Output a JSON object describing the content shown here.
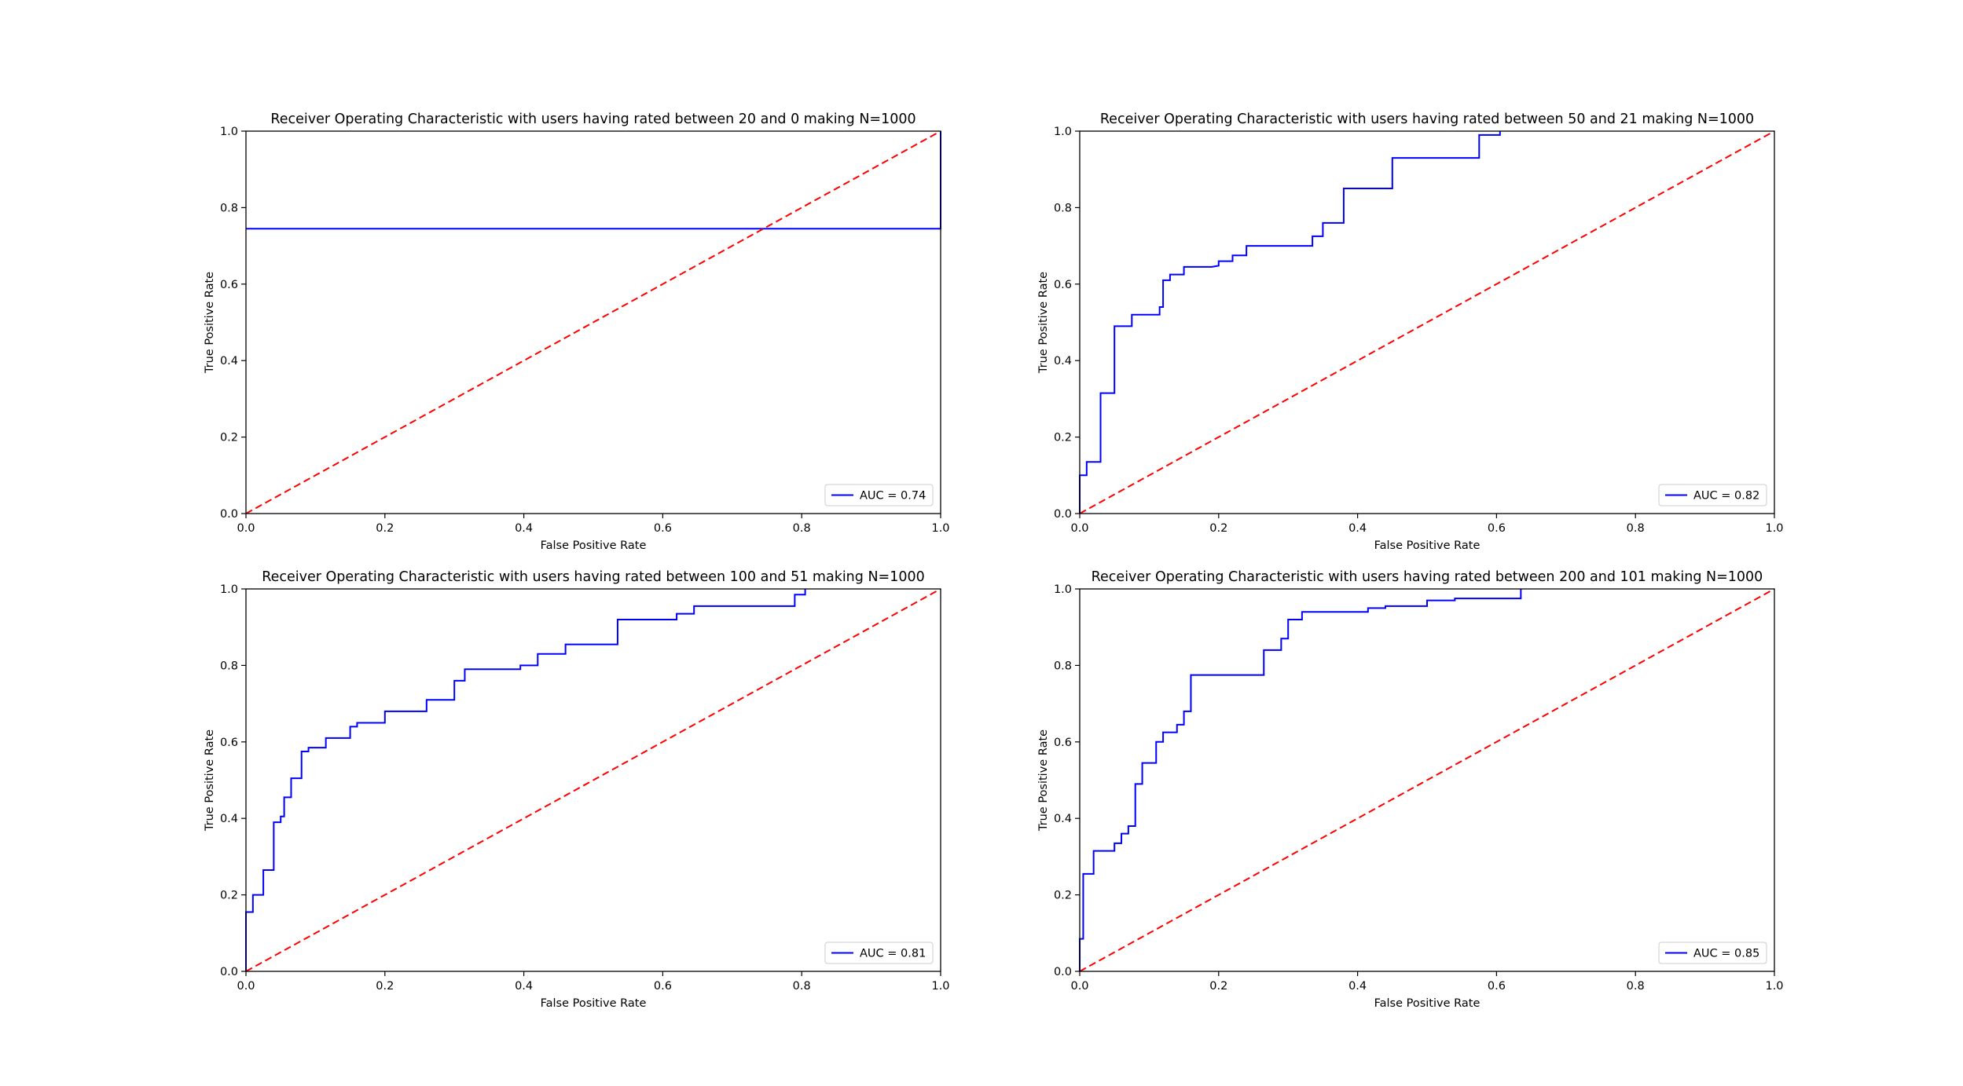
{
  "colors": {
    "roc": "#0000ff",
    "diagonal": "#ff0000",
    "axes": "#000000",
    "background": "#ffffff"
  },
  "chart_data": [
    {
      "type": "line",
      "title": "Receiver Operating Characteristic with users having rated between 20 and 0 making N=1000",
      "xlabel": "False Positive Rate",
      "ylabel": "True Positive Rate",
      "xlim": [
        0,
        1
      ],
      "ylim": [
        0,
        1
      ],
      "xticks": [
        "0.0",
        "0.2",
        "0.4",
        "0.6",
        "0.8",
        "1.0"
      ],
      "yticks": [
        "0.0",
        "0.2",
        "0.4",
        "0.6",
        "0.8",
        "1.0"
      ],
      "grid": false,
      "legend_position": "lower-right",
      "series": [
        {
          "name": "AUC = 0.74",
          "style": "solid",
          "color": "#0000ff",
          "x": [
            0.0,
            1.0,
            1.0
          ],
          "y": [
            0.745,
            0.745,
            1.0
          ]
        },
        {
          "style": "dashed",
          "color": "#ff0000",
          "x": [
            0,
            1
          ],
          "y": [
            0,
            1
          ]
        }
      ]
    },
    {
      "type": "line",
      "title": "Receiver Operating Characteristic with users having rated between 50 and 21 making N=1000",
      "xlabel": "False Positive Rate",
      "ylabel": "True Positive Rate",
      "xlim": [
        0,
        1
      ],
      "ylim": [
        0,
        1
      ],
      "xticks": [
        "0.0",
        "0.2",
        "0.4",
        "0.6",
        "0.8",
        "1.0"
      ],
      "yticks": [
        "0.0",
        "0.2",
        "0.4",
        "0.6",
        "0.8",
        "1.0"
      ],
      "grid": false,
      "legend_position": "lower-right",
      "series": [
        {
          "name": "AUC = 0.82",
          "style": "solid",
          "color": "#0000ff",
          "x": [
            0.0,
            0.0,
            0.01,
            0.01,
            0.03,
            0.03,
            0.05,
            0.05,
            0.075,
            0.075,
            0.115,
            0.115,
            0.12,
            0.12,
            0.13,
            0.13,
            0.15,
            0.15,
            0.19,
            0.2,
            0.2,
            0.22,
            0.22,
            0.24,
            0.24,
            0.335,
            0.335,
            0.35,
            0.35,
            0.38,
            0.38,
            0.45,
            0.45,
            0.575,
            0.575,
            0.605,
            0.605
          ],
          "y": [
            0.0,
            0.1,
            0.1,
            0.135,
            0.135,
            0.315,
            0.315,
            0.49,
            0.49,
            0.52,
            0.52,
            0.54,
            0.54,
            0.61,
            0.61,
            0.625,
            0.625,
            0.645,
            0.645,
            0.648,
            0.66,
            0.66,
            0.675,
            0.675,
            0.7,
            0.7,
            0.725,
            0.725,
            0.76,
            0.76,
            0.85,
            0.85,
            0.93,
            0.93,
            0.99,
            0.99,
            1.0
          ]
        },
        {
          "style": "dashed",
          "color": "#ff0000",
          "x": [
            0,
            1
          ],
          "y": [
            0,
            1
          ]
        }
      ]
    },
    {
      "type": "line",
      "title": "Receiver Operating Characteristic with users having rated between 100 and 51 making N=1000",
      "xlabel": "False Positive Rate",
      "ylabel": "True Positive Rate",
      "xlim": [
        0,
        1
      ],
      "ylim": [
        0,
        1
      ],
      "xticks": [
        "0.0",
        "0.2",
        "0.4",
        "0.6",
        "0.8",
        "1.0"
      ],
      "yticks": [
        "0.0",
        "0.2",
        "0.4",
        "0.6",
        "0.8",
        "1.0"
      ],
      "grid": false,
      "legend_position": "lower-right",
      "series": [
        {
          "name": "AUC = 0.81",
          "style": "solid",
          "color": "#0000ff",
          "x": [
            0.0,
            0.0,
            0.01,
            0.01,
            0.025,
            0.025,
            0.04,
            0.04,
            0.05,
            0.05,
            0.055,
            0.055,
            0.065,
            0.065,
            0.08,
            0.08,
            0.09,
            0.09,
            0.115,
            0.115,
            0.15,
            0.15,
            0.16,
            0.16,
            0.2,
            0.2,
            0.26,
            0.26,
            0.3,
            0.3,
            0.315,
            0.315,
            0.395,
            0.395,
            0.42,
            0.42,
            0.46,
            0.46,
            0.535,
            0.535,
            0.62,
            0.62,
            0.645,
            0.645,
            0.79,
            0.79,
            0.805,
            0.805
          ],
          "y": [
            0.0,
            0.155,
            0.155,
            0.2,
            0.2,
            0.265,
            0.265,
            0.39,
            0.39,
            0.405,
            0.405,
            0.455,
            0.455,
            0.505,
            0.505,
            0.575,
            0.575,
            0.585,
            0.585,
            0.61,
            0.61,
            0.64,
            0.64,
            0.65,
            0.65,
            0.68,
            0.68,
            0.71,
            0.71,
            0.76,
            0.76,
            0.79,
            0.79,
            0.8,
            0.8,
            0.83,
            0.83,
            0.855,
            0.855,
            0.92,
            0.92,
            0.935,
            0.935,
            0.955,
            0.955,
            0.985,
            0.985,
            1.0
          ]
        },
        {
          "style": "dashed",
          "color": "#ff0000",
          "x": [
            0,
            1
          ],
          "y": [
            0,
            1
          ]
        }
      ]
    },
    {
      "type": "line",
      "title": "Receiver Operating Characteristic with users having rated between 200 and 101 making N=1000",
      "xlabel": "False Positive Rate",
      "ylabel": "True Positive Rate",
      "xlim": [
        0,
        1
      ],
      "ylim": [
        0,
        1
      ],
      "xticks": [
        "0.0",
        "0.2",
        "0.4",
        "0.6",
        "0.8",
        "1.0"
      ],
      "yticks": [
        "0.0",
        "0.2",
        "0.4",
        "0.6",
        "0.8",
        "1.0"
      ],
      "grid": false,
      "legend_position": "lower-right",
      "series": [
        {
          "name": "AUC = 0.85",
          "style": "solid",
          "color": "#0000ff",
          "x": [
            0.0,
            0.0,
            0.005,
            0.005,
            0.02,
            0.02,
            0.05,
            0.05,
            0.06,
            0.06,
            0.07,
            0.07,
            0.08,
            0.08,
            0.09,
            0.09,
            0.11,
            0.11,
            0.12,
            0.12,
            0.14,
            0.14,
            0.15,
            0.15,
            0.16,
            0.16,
            0.265,
            0.265,
            0.29,
            0.29,
            0.3,
            0.3,
            0.32,
            0.32,
            0.415,
            0.415,
            0.44,
            0.44,
            0.5,
            0.5,
            0.54,
            0.54,
            0.635,
            0.635
          ],
          "y": [
            0.0,
            0.085,
            0.085,
            0.255,
            0.255,
            0.315,
            0.315,
            0.335,
            0.335,
            0.36,
            0.36,
            0.38,
            0.38,
            0.49,
            0.49,
            0.545,
            0.545,
            0.6,
            0.6,
            0.625,
            0.625,
            0.645,
            0.645,
            0.68,
            0.68,
            0.775,
            0.775,
            0.84,
            0.84,
            0.87,
            0.87,
            0.92,
            0.92,
            0.94,
            0.94,
            0.95,
            0.95,
            0.955,
            0.955,
            0.97,
            0.97,
            0.975,
            0.975,
            1.0
          ]
        },
        {
          "style": "dashed",
          "color": "#ff0000",
          "x": [
            0,
            1
          ],
          "y": [
            0,
            1
          ]
        }
      ]
    }
  ]
}
